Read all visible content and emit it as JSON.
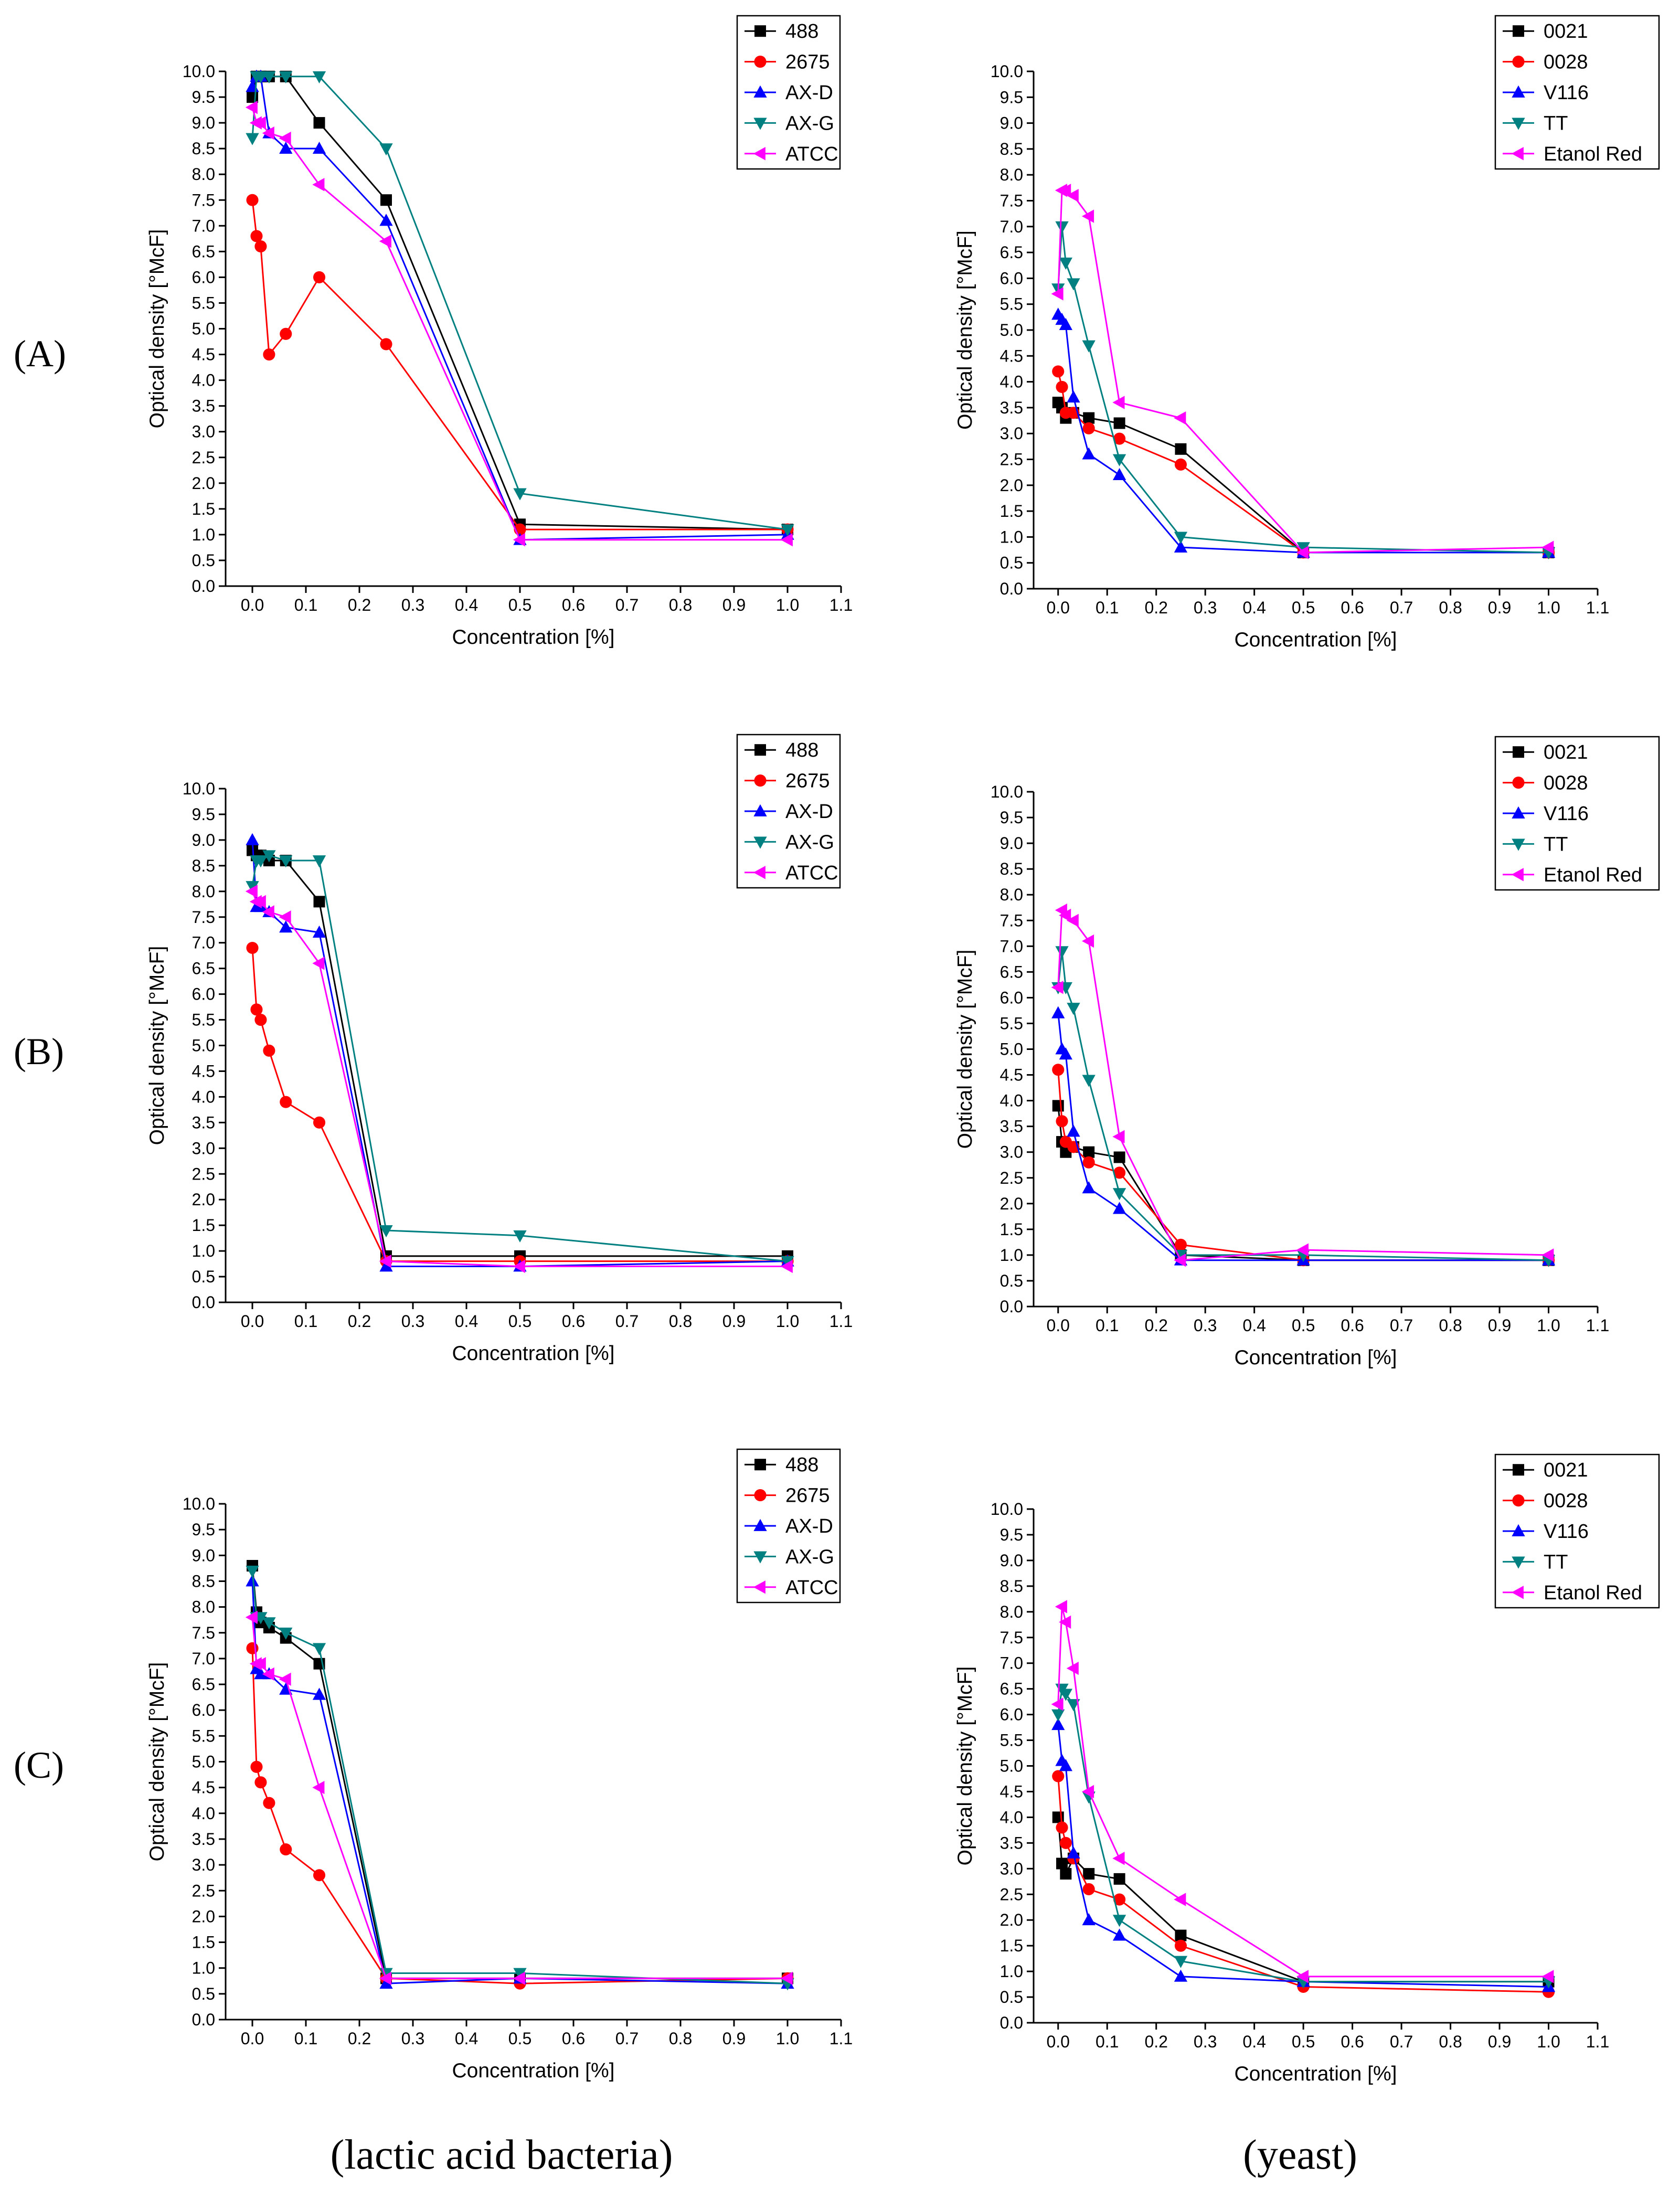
{
  "figure": {
    "row_labels": [
      "(A)",
      "(B)",
      "(C)"
    ],
    "column_labels": [
      "(lactic acid bacteria)",
      "(yeast)"
    ],
    "colors": {
      "black": "#000000",
      "red": "#ff0000",
      "blue": "#0000ff",
      "teal": "#008080",
      "magenta": "#ff00ff"
    },
    "marker_icons": [
      "square-marker",
      "circle-marker",
      "triangle-up-marker",
      "triangle-down-marker",
      "triangle-left-marker"
    ]
  },
  "chart_data": [
    {
      "id": "A-bacteria",
      "type": "line",
      "xlabel": "Concentration [%]",
      "ylabel": "Optical density [°McF]",
      "xlim": [
        -0.05,
        1.1
      ],
      "ylim": [
        0,
        10
      ],
      "xticks": [
        "0.0",
        "0.1",
        "0.2",
        "0.3",
        "0.4",
        "0.5",
        "0.6",
        "0.7",
        "0.8",
        "0.9",
        "1.0",
        "1.1"
      ],
      "yticks": [
        "0.0",
        "0.5",
        "1.0",
        "1.5",
        "2.0",
        "2.5",
        "3.0",
        "3.5",
        "4.0",
        "4.5",
        "5.0",
        "5.5",
        "6.0",
        "6.5",
        "7.0",
        "7.5",
        "8.0",
        "8.5",
        "9.0",
        "9.5",
        "10.0"
      ],
      "x": [
        0,
        0.0078,
        0.0156,
        0.03125,
        0.0625,
        0.125,
        0.25,
        0.5,
        1.0
      ],
      "series": [
        {
          "name": "488",
          "color": "black",
          "marker": "square",
          "values": [
            9.5,
            9.9,
            9.9,
            9.9,
            9.9,
            9.0,
            7.5,
            1.2,
            1.1
          ]
        },
        {
          "name": "2675",
          "color": "red",
          "marker": "circle",
          "values": [
            7.5,
            6.8,
            6.6,
            4.5,
            4.9,
            6.0,
            4.7,
            1.1,
            1.1
          ]
        },
        {
          "name": "AX-D",
          "color": "blue",
          "marker": "triangle-up",
          "values": [
            9.7,
            9.9,
            9.9,
            8.8,
            8.5,
            8.5,
            7.1,
            0.9,
            1.0
          ]
        },
        {
          "name": "AX-G",
          "color": "teal",
          "marker": "triangle-down",
          "values": [
            8.7,
            9.9,
            9.9,
            9.9,
            9.9,
            9.9,
            8.5,
            1.8,
            1.1
          ]
        },
        {
          "name": "ATCC",
          "color": "magenta",
          "marker": "triangle-left",
          "values": [
            9.3,
            9.0,
            9.0,
            8.8,
            8.7,
            7.8,
            6.7,
            0.9,
            0.9
          ]
        }
      ]
    },
    {
      "id": "A-yeast",
      "type": "line",
      "xlabel": "Concentration [%]",
      "ylabel": "Optical density [°McF]",
      "xlim": [
        -0.05,
        1.1
      ],
      "ylim": [
        0,
        10
      ],
      "xticks": [
        "0.0",
        "0.1",
        "0.2",
        "0.3",
        "0.4",
        "0.5",
        "0.6",
        "0.7",
        "0.8",
        "0.9",
        "1.0",
        "1.1"
      ],
      "yticks": [
        "0.0",
        "0.5",
        "1.0",
        "1.5",
        "2.0",
        "2.5",
        "3.0",
        "3.5",
        "4.0",
        "4.5",
        "5.0",
        "5.5",
        "6.0",
        "6.5",
        "7.0",
        "7.5",
        "8.0",
        "8.5",
        "9.0",
        "9.5",
        "10.0"
      ],
      "x": [
        0,
        0.0078,
        0.0156,
        0.03125,
        0.0625,
        0.125,
        0.25,
        0.5,
        1.0
      ],
      "series": [
        {
          "name": "0021",
          "color": "black",
          "marker": "square",
          "values": [
            3.6,
            3.5,
            3.3,
            3.4,
            3.3,
            3.2,
            2.7,
            0.7,
            0.7
          ]
        },
        {
          "name": "0028",
          "color": "red",
          "marker": "circle",
          "values": [
            4.2,
            3.9,
            3.4,
            3.4,
            3.1,
            2.9,
            2.4,
            0.7,
            0.7
          ]
        },
        {
          "name": "V116",
          "color": "blue",
          "marker": "triangle-up",
          "values": [
            5.3,
            5.2,
            5.1,
            3.7,
            2.6,
            2.2,
            0.8,
            0.7,
            0.7
          ]
        },
        {
          "name": "TT",
          "color": "teal",
          "marker": "triangle-down",
          "values": [
            5.8,
            7.0,
            6.3,
            5.9,
            4.7,
            2.5,
            1.0,
            0.8,
            0.7
          ]
        },
        {
          "name": "Etanol Red",
          "color": "magenta",
          "marker": "triangle-left",
          "values": [
            5.7,
            7.7,
            7.7,
            7.6,
            7.2,
            3.6,
            3.3,
            0.7,
            0.8
          ]
        }
      ]
    },
    {
      "id": "B-bacteria",
      "type": "line",
      "xlabel": "Concentration [%]",
      "ylabel": "Optical density [°McF]",
      "xlim": [
        -0.05,
        1.1
      ],
      "ylim": [
        0,
        10
      ],
      "xticks": [
        "0.0",
        "0.1",
        "0.2",
        "0.3",
        "0.4",
        "0.5",
        "0.6",
        "0.7",
        "0.8",
        "0.9",
        "1.0",
        "1.1"
      ],
      "yticks": [
        "0.0",
        "0.5",
        "1.0",
        "1.5",
        "2.0",
        "2.5",
        "3.0",
        "3.5",
        "4.0",
        "4.5",
        "5.0",
        "5.5",
        "6.0",
        "6.5",
        "7.0",
        "7.5",
        "8.0",
        "8.5",
        "9.0",
        "9.5",
        "10.0"
      ],
      "x": [
        0,
        0.0078,
        0.0156,
        0.03125,
        0.0625,
        0.125,
        0.25,
        0.5,
        1.0
      ],
      "series": [
        {
          "name": "488",
          "color": "black",
          "marker": "square",
          "values": [
            8.8,
            8.7,
            8.7,
            8.6,
            8.6,
            7.8,
            0.9,
            0.9,
            0.9
          ]
        },
        {
          "name": "2675",
          "color": "red",
          "marker": "circle",
          "values": [
            6.9,
            5.7,
            5.5,
            4.9,
            3.9,
            3.5,
            0.8,
            0.8,
            0.8
          ]
        },
        {
          "name": "AX-D",
          "color": "blue",
          "marker": "triangle-up",
          "values": [
            9.0,
            7.7,
            7.7,
            7.6,
            7.3,
            7.2,
            0.7,
            0.7,
            0.8
          ]
        },
        {
          "name": "AX-G",
          "color": "teal",
          "marker": "triangle-down",
          "values": [
            8.1,
            8.6,
            8.6,
            8.7,
            8.6,
            8.6,
            1.4,
            1.3,
            0.8
          ]
        },
        {
          "name": "ATCC",
          "color": "magenta",
          "marker": "triangle-left",
          "values": [
            8.0,
            7.8,
            7.8,
            7.6,
            7.5,
            6.6,
            0.8,
            0.7,
            0.7
          ]
        }
      ]
    },
    {
      "id": "B-yeast",
      "type": "line",
      "xlabel": "Concentration [%]",
      "ylabel": "Optical density [°McF]",
      "xlim": [
        -0.05,
        1.1
      ],
      "ylim": [
        0,
        10
      ],
      "xticks": [
        "0.0",
        "0.1",
        "0.2",
        "0.3",
        "0.4",
        "0.5",
        "0.6",
        "0.7",
        "0.8",
        "0.9",
        "1.0",
        "1.1"
      ],
      "yticks": [
        "0.0",
        "0.5",
        "1.0",
        "1.5",
        "2.0",
        "2.5",
        "3.0",
        "3.5",
        "4.0",
        "4.5",
        "5.0",
        "5.5",
        "6.0",
        "6.5",
        "7.0",
        "7.5",
        "8.0",
        "8.5",
        "9.0",
        "9.5",
        "10.0"
      ],
      "x": [
        0,
        0.0078,
        0.0156,
        0.03125,
        0.0625,
        0.125,
        0.25,
        0.5,
        1.0
      ],
      "series": [
        {
          "name": "0021",
          "color": "black",
          "marker": "square",
          "values": [
            3.9,
            3.2,
            3.0,
            3.1,
            3.0,
            2.9,
            1.0,
            0.9,
            0.9
          ]
        },
        {
          "name": "0028",
          "color": "red",
          "marker": "circle",
          "values": [
            4.6,
            3.6,
            3.2,
            3.1,
            2.8,
            2.6,
            1.2,
            0.9,
            0.9
          ]
        },
        {
          "name": "V116",
          "color": "blue",
          "marker": "triangle-up",
          "values": [
            5.7,
            5.0,
            4.9,
            3.4,
            2.3,
            1.9,
            0.9,
            0.9,
            0.9
          ]
        },
        {
          "name": "TT",
          "color": "teal",
          "marker": "triangle-down",
          "values": [
            6.2,
            6.9,
            6.2,
            5.8,
            4.4,
            2.2,
            1.0,
            1.0,
            0.9
          ]
        },
        {
          "name": "Etanol Red",
          "color": "magenta",
          "marker": "triangle-left",
          "values": [
            6.2,
            7.7,
            7.6,
            7.5,
            7.1,
            3.3,
            0.9,
            1.1,
            1.0
          ]
        }
      ]
    },
    {
      "id": "C-bacteria",
      "type": "line",
      "xlabel": "Concentration [%]",
      "ylabel": "Optical density [°McF]",
      "xlim": [
        -0.05,
        1.1
      ],
      "ylim": [
        0,
        10
      ],
      "xticks": [
        "0.0",
        "0.1",
        "0.2",
        "0.3",
        "0.4",
        "0.5",
        "0.6",
        "0.7",
        "0.8",
        "0.9",
        "1.0",
        "1.1"
      ],
      "yticks": [
        "0.0",
        "0.5",
        "1.0",
        "1.5",
        "2.0",
        "2.5",
        "3.0",
        "3.5",
        "4.0",
        "4.5",
        "5.0",
        "5.5",
        "6.0",
        "6.5",
        "7.0",
        "7.5",
        "8.0",
        "8.5",
        "9.0",
        "9.5",
        "10.0"
      ],
      "x": [
        0,
        0.0078,
        0.0156,
        0.03125,
        0.0625,
        0.125,
        0.25,
        0.5,
        1.0
      ],
      "series": [
        {
          "name": "488",
          "color": "black",
          "marker": "square",
          "values": [
            8.8,
            7.9,
            7.7,
            7.6,
            7.4,
            6.9,
            0.8,
            0.8,
            0.8
          ]
        },
        {
          "name": "2675",
          "color": "red",
          "marker": "circle",
          "values": [
            7.2,
            4.9,
            4.6,
            4.2,
            3.3,
            2.8,
            0.8,
            0.7,
            0.8
          ]
        },
        {
          "name": "AX-D",
          "color": "blue",
          "marker": "triangle-up",
          "values": [
            8.5,
            6.8,
            6.7,
            6.7,
            6.4,
            6.3,
            0.7,
            0.8,
            0.7
          ]
        },
        {
          "name": "AX-G",
          "color": "teal",
          "marker": "triangle-down",
          "values": [
            8.7,
            7.8,
            7.8,
            7.7,
            7.5,
            7.2,
            0.9,
            0.9,
            0.7
          ]
        },
        {
          "name": "ATCC",
          "color": "magenta",
          "marker": "triangle-left",
          "values": [
            7.8,
            6.9,
            6.9,
            6.7,
            6.6,
            4.5,
            0.8,
            0.8,
            0.8
          ]
        }
      ]
    },
    {
      "id": "C-yeast",
      "type": "line",
      "xlabel": "Concentration [%]",
      "ylabel": "Optical density [°McF]",
      "xlim": [
        -0.05,
        1.1
      ],
      "ylim": [
        0,
        10
      ],
      "xticks": [
        "0.0",
        "0.1",
        "0.2",
        "0.3",
        "0.4",
        "0.5",
        "0.6",
        "0.7",
        "0.8",
        "0.9",
        "1.0",
        "1.1"
      ],
      "yticks": [
        "0.0",
        "0.5",
        "1.0",
        "1.5",
        "2.0",
        "2.5",
        "3.0",
        "3.5",
        "4.0",
        "4.5",
        "5.0",
        "5.5",
        "6.0",
        "6.5",
        "7.0",
        "7.5",
        "8.0",
        "8.5",
        "9.0",
        "9.5",
        "10.0"
      ],
      "x": [
        0,
        0.0078,
        0.0156,
        0.03125,
        0.0625,
        0.125,
        0.25,
        0.5,
        1.0
      ],
      "series": [
        {
          "name": "0021",
          "color": "black",
          "marker": "square",
          "values": [
            4.0,
            3.1,
            2.9,
            3.2,
            2.9,
            2.8,
            1.7,
            0.8,
            0.8
          ]
        },
        {
          "name": "0028",
          "color": "red",
          "marker": "circle",
          "values": [
            4.8,
            3.8,
            3.5,
            3.2,
            2.6,
            2.4,
            1.5,
            0.7,
            0.6
          ]
        },
        {
          "name": "V116",
          "color": "blue",
          "marker": "triangle-up",
          "values": [
            5.8,
            5.1,
            5.0,
            3.3,
            2.0,
            1.7,
            0.9,
            0.8,
            0.7
          ]
        },
        {
          "name": "TT",
          "color": "teal",
          "marker": "triangle-down",
          "values": [
            6.0,
            6.5,
            6.4,
            6.2,
            4.4,
            2.0,
            1.2,
            0.8,
            0.8
          ]
        },
        {
          "name": "Etanol Red",
          "color": "magenta",
          "marker": "triangle-left",
          "values": [
            6.2,
            8.1,
            7.8,
            6.9,
            4.5,
            3.2,
            2.4,
            0.9,
            0.9
          ]
        }
      ]
    }
  ]
}
